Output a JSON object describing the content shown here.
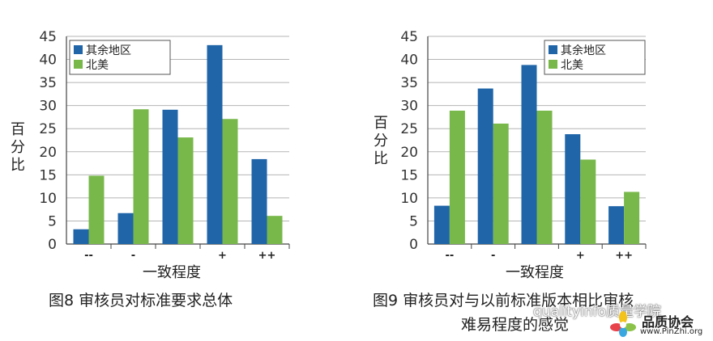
{
  "chart_data": [
    {
      "type": "bar",
      "categories": [
        "--",
        "-",
        "",
        "+",
        "++"
      ],
      "series": [
        {
          "name": "其余地区",
          "color": "#1f65a8",
          "values": [
            3.2,
            6.7,
            29.1,
            43.1,
            18.4
          ]
        },
        {
          "name": "北美",
          "color": "#78b84b",
          "values": [
            14.8,
            29.2,
            23.1,
            27.1,
            6.1
          ]
        }
      ],
      "xlabel": "一致程度",
      "ylabel": "百分比",
      "ylim": [
        0,
        45
      ],
      "yticks": [
        0,
        5,
        10,
        15,
        20,
        25,
        30,
        35,
        40,
        45
      ],
      "grid": true,
      "legend": "top-left",
      "caption": "图8  审核员对标准要求总体"
    },
    {
      "type": "bar",
      "categories": [
        "--",
        "-",
        "",
        "+",
        "++"
      ],
      "series": [
        {
          "name": "其余地区",
          "color": "#1f65a8",
          "values": [
            8.3,
            33.7,
            38.8,
            23.8,
            8.2
          ]
        },
        {
          "name": "北美",
          "color": "#78b84b",
          "values": [
            28.9,
            26.1,
            28.9,
            18.3,
            11.3
          ]
        }
      ],
      "xlabel": "一致程度",
      "ylabel": "百分比",
      "ylim": [
        0,
        45
      ],
      "yticks": [
        0,
        5,
        10,
        15,
        20,
        25,
        30,
        35,
        40,
        45
      ],
      "grid": true,
      "legend": "top-right",
      "caption_line1": "图9  审核员对与以前标准版本相比审核",
      "caption_line2": "难易程度的感觉"
    }
  ],
  "watermark": {
    "text": "qualityinfo质量学院",
    "brand": "品质协会",
    "url": "www.PinZhi.org"
  }
}
